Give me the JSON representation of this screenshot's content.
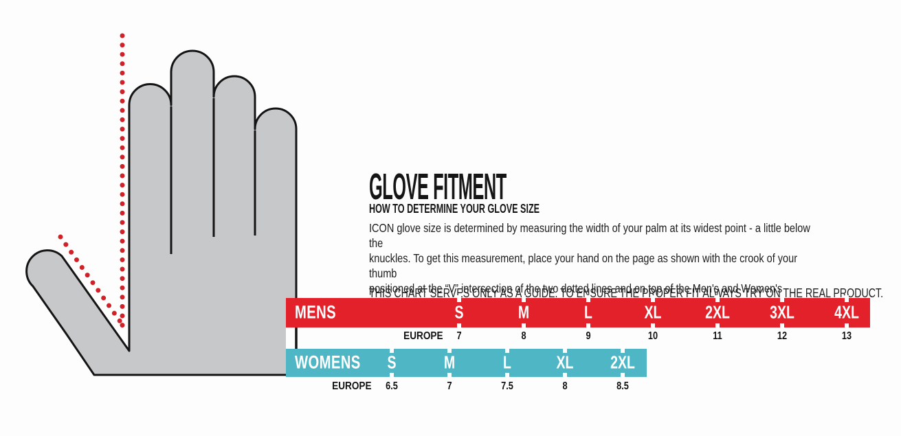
{
  "title": "GLOVE FITMENT",
  "how_to": {
    "heading": "HOW TO DETERMINE YOUR GLOVE SIZE",
    "body": "ICON glove size is determined by measuring the width of your palm at its widest point - a little below the\nknuckles. To get this measurement, place your hand on the page as shown with the crook of your thumb\npositioned at the “V” intersection of the two dotted lines and on top of the Men's and Women's measuring bars.",
    "note": "THIS CHART SERVES ONLY AS A GUIDE. TO ENSURE THE PROPER FIT ALWAYS TRY ON THE REAL PRODUCT."
  },
  "hand_diagram": {
    "description": "gray outlined left hand, palm down, with two red dotted measuring lines meeting in a V at the thumb crook",
    "hand_fill": "#c7c8ca",
    "outline_color": "#141414",
    "dotted_line_color": "#cf2127"
  },
  "mens_chart": {
    "label": "MENS",
    "bar_color": "#e2212b",
    "europe_label": "EUROPE",
    "sizes": [
      {
        "size": "S",
        "europe": "7"
      },
      {
        "size": "M",
        "europe": "8"
      },
      {
        "size": "L",
        "europe": "9"
      },
      {
        "size": "XL",
        "europe": "10"
      },
      {
        "size": "2XL",
        "europe": "11"
      },
      {
        "size": "3XL",
        "europe": "12"
      },
      {
        "size": "4XL",
        "europe": "13"
      }
    ]
  },
  "womens_chart": {
    "label": "WOMENS",
    "bar_color": "#4eb6c5",
    "europe_label": "EUROPE",
    "sizes": [
      {
        "size": "S",
        "europe": "6.5"
      },
      {
        "size": "M",
        "europe": "7"
      },
      {
        "size": "L",
        "europe": "7.5"
      },
      {
        "size": "XL",
        "europe": "8"
      },
      {
        "size": "2XL",
        "europe": "8.5"
      }
    ]
  }
}
